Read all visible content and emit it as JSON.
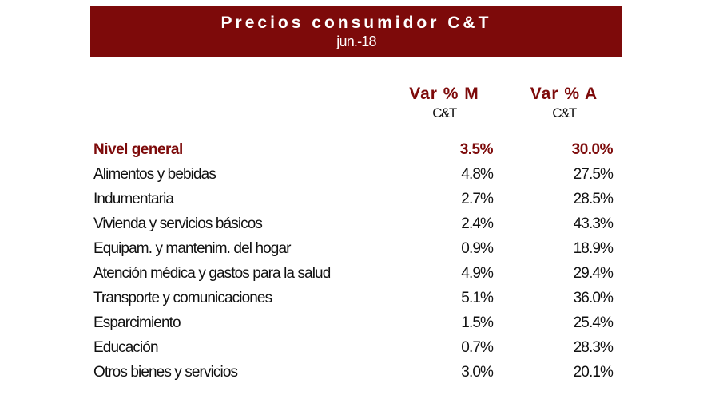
{
  "chart_data": {
    "type": "table",
    "title": "Precios consumidor C&T",
    "subtitle": "jun.-18",
    "columns": [
      {
        "label": "Var % M",
        "sublabel": "C&T"
      },
      {
        "label": "Var % A",
        "sublabel": "C&T"
      }
    ],
    "accent_color": "#7d0a0a",
    "rows": [
      {
        "label": "Nivel general",
        "values": [
          "3.5%",
          "30.0%"
        ]
      },
      {
        "label": "Alimentos y bebidas",
        "values": [
          "4.8%",
          "27.5%"
        ]
      },
      {
        "label": "Indumentaria",
        "values": [
          "2.7%",
          "28.5%"
        ]
      },
      {
        "label": "Vivienda y servicios básicos",
        "values": [
          "2.4%",
          "43.3%"
        ]
      },
      {
        "label": "Equipam. y mantenim. del hogar",
        "values": [
          "0.9%",
          "18.9%"
        ]
      },
      {
        "label": "Atención médica y gastos para la salud",
        "values": [
          "4.9%",
          "29.4%"
        ]
      },
      {
        "label": "Transporte y comunicaciones",
        "values": [
          "5.1%",
          "36.0%"
        ]
      },
      {
        "label": "Esparcimiento",
        "values": [
          "1.5%",
          "25.4%"
        ]
      },
      {
        "label": "Educación",
        "values": [
          "0.7%",
          "28.3%"
        ]
      },
      {
        "label": "Otros bienes y servicios",
        "values": [
          "3.0%",
          "20.1%"
        ]
      }
    ]
  }
}
